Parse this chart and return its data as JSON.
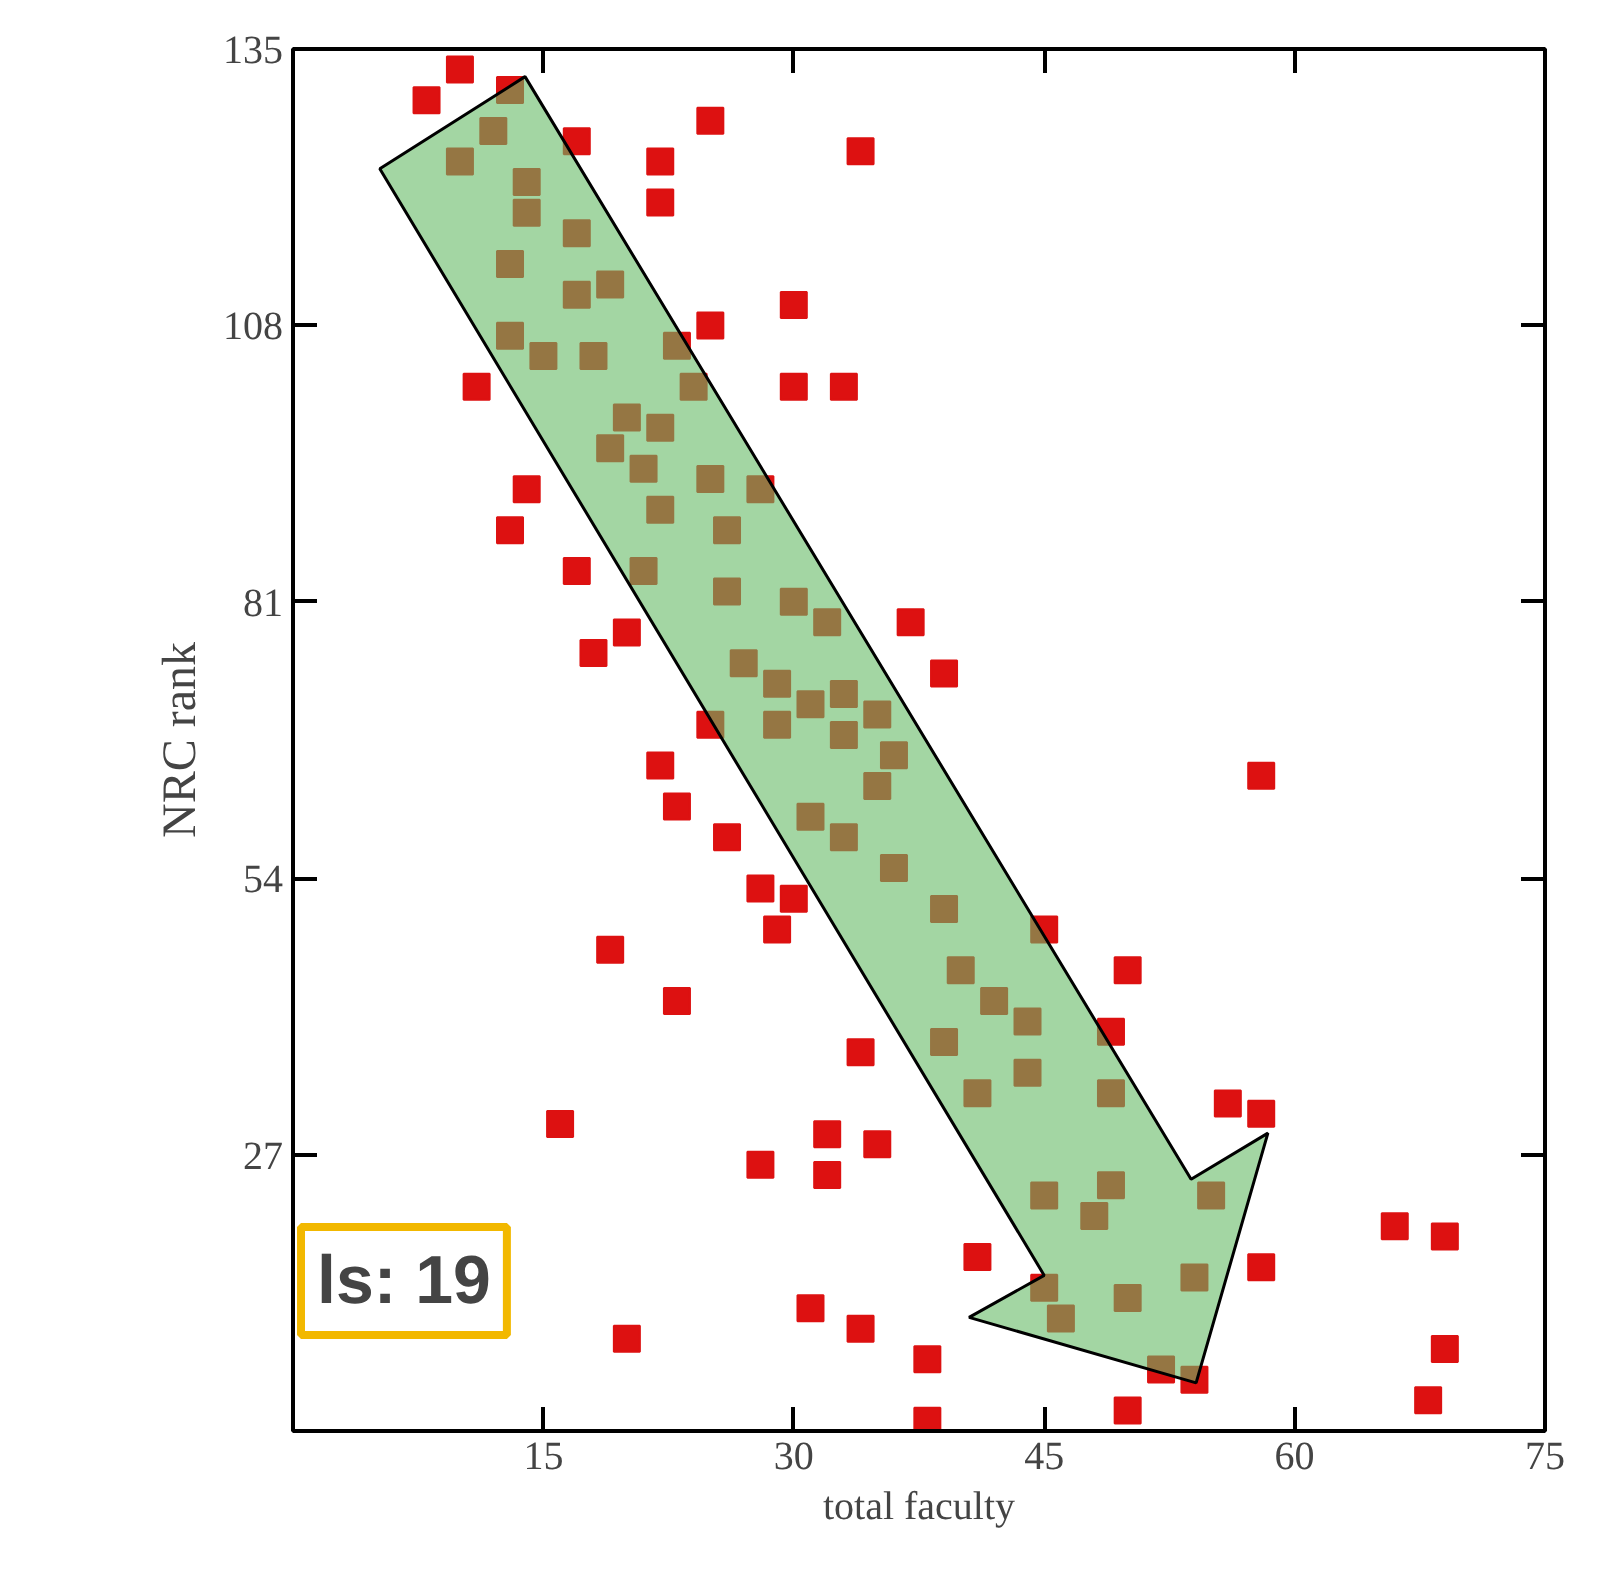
{
  "chart_data": {
    "type": "scatter",
    "xlabel": "total faculty",
    "ylabel": "NRC rank",
    "x": [
      8,
      10,
      13,
      12,
      10,
      14,
      14,
      17,
      17,
      13,
      19,
      17,
      13,
      15,
      18,
      25,
      22,
      22,
      34,
      30,
      25,
      23,
      24,
      30,
      33,
      11,
      20,
      22,
      19,
      21,
      25,
      28,
      22,
      26,
      14,
      13,
      17,
      21,
      26,
      30,
      32,
      37,
      39,
      20,
      18,
      27,
      29,
      31,
      33,
      35,
      25,
      29,
      33,
      36,
      22,
      35,
      23,
      26,
      31,
      33,
      36,
      28,
      30,
      29,
      39,
      19,
      23,
      34,
      39,
      16,
      28,
      32,
      32,
      35,
      31,
      34,
      20,
      38,
      38,
      58,
      45,
      40,
      42,
      44,
      50,
      49,
      41,
      44,
      49,
      56,
      58,
      45,
      49,
      48,
      55,
      41,
      58,
      66,
      69,
      45,
      46,
      50,
      54,
      52,
      54,
      69,
      68,
      50
    ],
    "values": [
      130,
      133,
      131,
      127,
      124,
      122,
      119,
      126,
      117,
      114,
      112,
      111,
      107,
      105,
      105,
      128,
      124,
      120,
      125,
      110,
      108,
      106,
      102,
      102,
      102,
      102,
      99,
      98,
      96,
      94,
      93,
      92,
      90,
      88,
      92,
      88,
      84,
      84,
      82,
      81,
      79,
      79,
      74,
      78,
      76,
      75,
      73,
      71,
      72,
      70,
      69,
      69,
      68,
      66,
      65,
      63,
      61,
      58,
      60,
      58,
      55,
      53,
      52,
      49,
      51,
      47,
      42,
      37,
      38,
      30,
      26,
      29,
      25,
      28,
      12,
      10,
      9,
      7,
      1,
      64,
      49,
      45,
      42,
      40,
      45,
      39,
      33,
      35,
      33,
      32,
      31,
      23,
      24,
      21,
      23,
      17,
      16,
      20,
      19,
      14,
      11,
      13,
      15,
      6,
      5,
      8,
      3,
      2
    ],
    "color": "#dd1111",
    "marker": "square",
    "xlim": [
      0,
      75
    ],
    "ylim": [
      0,
      135
    ],
    "xticks": [
      15,
      30,
      45,
      60,
      75
    ],
    "yticks": [
      27,
      54,
      81,
      108,
      135
    ],
    "grid": false,
    "annotations": [
      "ls: 19"
    ]
  }
}
